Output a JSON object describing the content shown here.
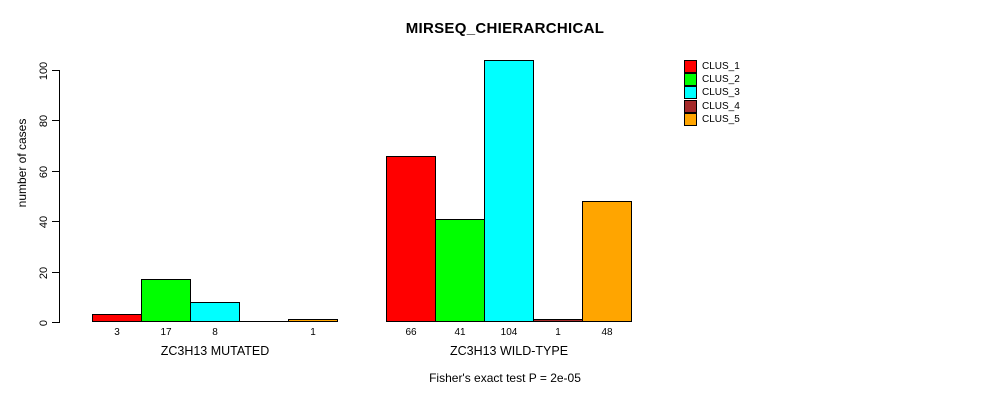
{
  "chart_data": {
    "type": "bar",
    "title": "MIRSEQ_CHIERARCHICAL",
    "ylabel": "number of cases",
    "xlabel": "Fisher's exact test P = 2e-05",
    "groups": [
      "ZC3H13 MUTATED",
      "ZC3H13 WILD-TYPE"
    ],
    "series": [
      {
        "name": "CLUS_1",
        "color": "#ff0000",
        "values": [
          3,
          66
        ]
      },
      {
        "name": "CLUS_2",
        "color": "#00ff00",
        "values": [
          17,
          41
        ]
      },
      {
        "name": "CLUS_3",
        "color": "#00ffff",
        "values": [
          8,
          104
        ]
      },
      {
        "name": "CLUS_4",
        "color": "#a52a2a",
        "values": [
          0,
          1
        ]
      },
      {
        "name": "CLUS_5",
        "color": "#ffa500",
        "values": [
          1,
          48
        ]
      }
    ],
    "bar_labels": [
      [
        "3",
        "17",
        "8",
        "",
        "1"
      ],
      [
        "66",
        "41",
        "104",
        "1",
        "48"
      ]
    ],
    "yticks": [
      0,
      20,
      40,
      60,
      80,
      100
    ],
    "ylim": [
      0,
      104
    ],
    "grid": false,
    "legend_position": "right-outside"
  },
  "legend": {
    "items": [
      {
        "label": "CLUS_1",
        "color": "#ff0000"
      },
      {
        "label": "CLUS_2",
        "color": "#00ff00"
      },
      {
        "label": "CLUS_3",
        "color": "#00ffff"
      },
      {
        "label": "CLUS_4",
        "color": "#a52a2a"
      },
      {
        "label": "CLUS_5",
        "color": "#ffa500"
      }
    ]
  }
}
